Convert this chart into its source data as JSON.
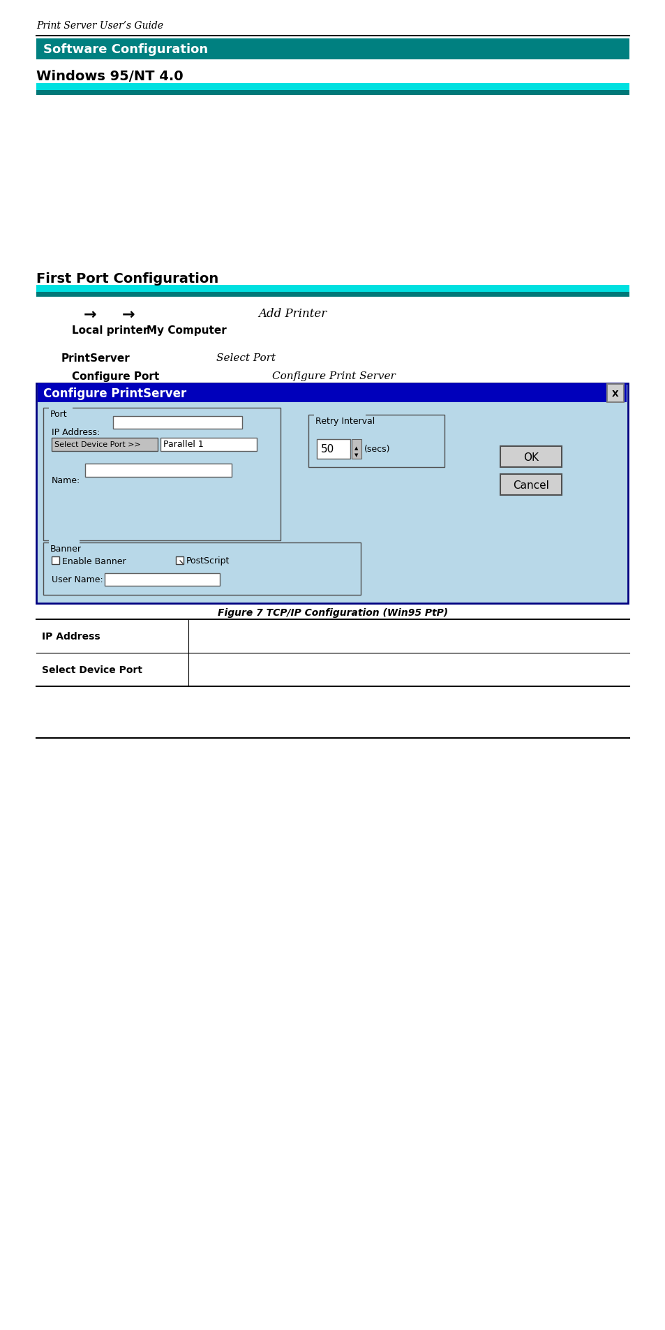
{
  "bg_color": "#ffffff",
  "header_italic_text": "Print Server User’s Guide",
  "section_bar_color": "#008080",
  "section_bar_text": "Software Configuration",
  "section_bar_text_color": "#ffffff",
  "windows_heading": "Windows 95/NT 4.0",
  "cyan_bar_color": "#00e0e0",
  "teal_bar_color": "#007878",
  "first_port_heading": "First Port Configuration",
  "arrow1_label": "→",
  "arrow2_label": "→",
  "add_printer_label": "Add Printer",
  "local_printer_label": "Local printer",
  "my_computer_label": "My Computer",
  "printserver_label": "PrintServer",
  "select_port_label": "Select Port",
  "configure_port_label": "Configure Port",
  "configure_print_server_label": "Configure Print Server",
  "dialog_title": "Configure PrintServer",
  "dialog_bg": "#b8d8e8",
  "dialog_title_bg": "#0000bb",
  "dialog_title_text_color": "#ffffff",
  "dialog_x_btn_text": "X",
  "port_group_label": "Port",
  "ip_label": "IP Address:",
  "select_device_label": "Select Device Port >>",
  "parallel_label": "Parallel 1",
  "name_label": "Name:",
  "retry_label": "Retry Interval",
  "retry_value": "50",
  "secs_label": "(secs)",
  "banner_group_label": "Banner",
  "enable_banner_label": "Enable Banner",
  "postscript_label": "PostScript",
  "user_name_label": "User Name:",
  "ok_btn": "OK",
  "cancel_btn": "Cancel",
  "figure_caption": "Figure 7 TCP/IP Configuration (Win95 PtP)",
  "table_row1_label": "IP Address",
  "table_row2_label": "Select Device Port"
}
